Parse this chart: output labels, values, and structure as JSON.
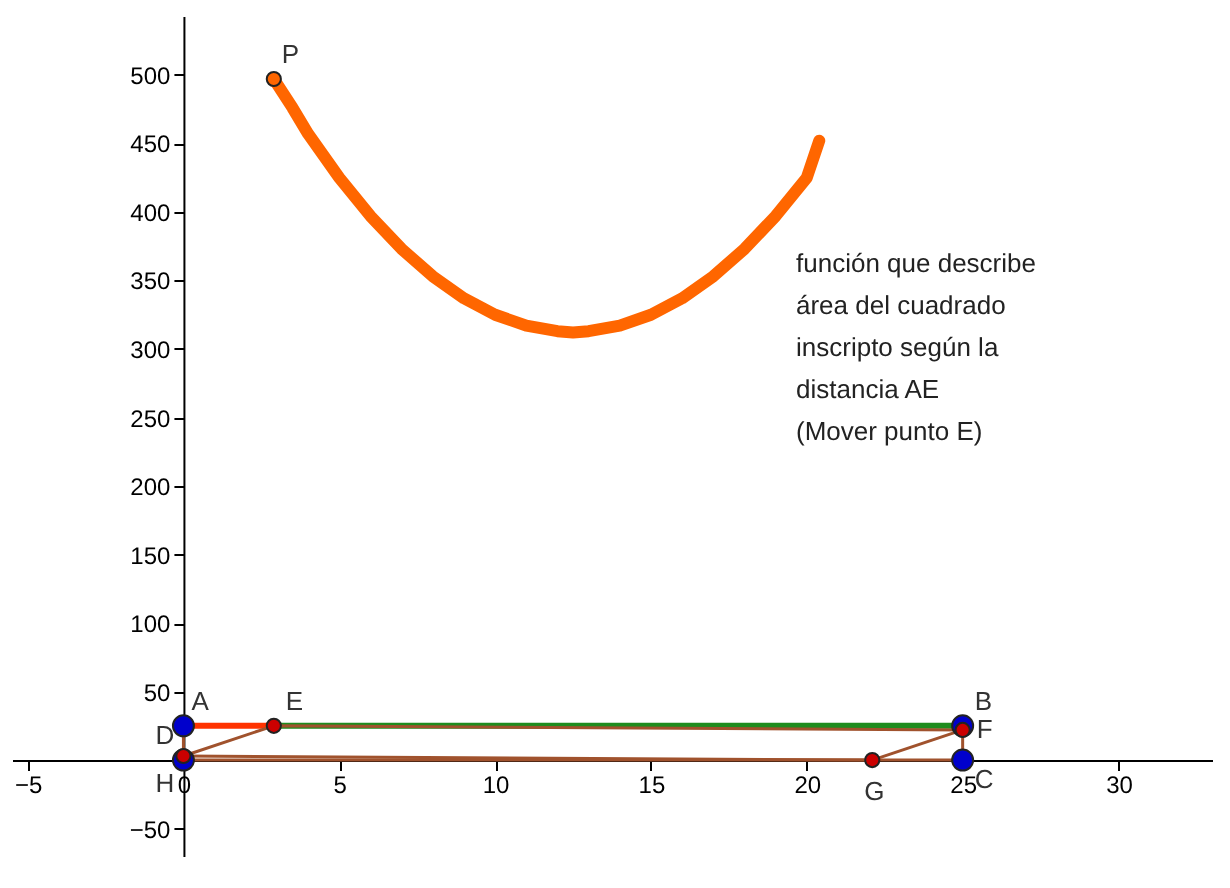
{
  "chart_data": {
    "type": "line",
    "annotations": [
      "función que describe",
      "área del cuadrado",
      "inscripto según la",
      "distancia AE",
      "(Mover punto E)",
      {
        "text": "P",
        "x": 2.9,
        "y": 497
      },
      {
        "text": "A",
        "x": 0,
        "y": 25
      },
      {
        "text": "B",
        "x": 25,
        "y": 25
      },
      {
        "text": "C",
        "x": 25,
        "y": 0
      },
      {
        "text": "D",
        "x": 0,
        "y": 0
      },
      {
        "text": "E",
        "x": 2.9,
        "y": 25
      },
      {
        "text": "F",
        "x": 25,
        "y": 22
      },
      {
        "text": "G",
        "x": 22.1,
        "y": 0
      },
      {
        "text": "H",
        "x": 0,
        "y": 3
      }
    ],
    "series": [
      {
        "color": "#ff6600",
        "x": [
          2.9,
          3.5,
          4,
          5,
          6,
          7,
          8,
          9,
          10,
          11,
          12,
          12.5,
          13,
          14,
          15,
          16,
          17,
          18,
          19,
          20,
          20.4
        ],
        "values": [
          497,
          476,
          457,
          425,
          397,
          373,
          353,
          337,
          325,
          317,
          313,
          312,
          313,
          317,
          325,
          337,
          353,
          373,
          397,
          425,
          452
        ]
      },
      {
        "color": "#ff3300",
        "x": [
          0,
          2.9
        ],
        "values": [
          25,
          25
        ]
      },
      {
        "color": "#1e8c1e",
        "x": [
          2.9,
          25
        ],
        "values": [
          25,
          25
        ]
      },
      {
        "color": "#a0522d",
        "x": [
          25,
          25,
          0,
          0
        ],
        "values": [
          25,
          0,
          0,
          25
        ]
      },
      {
        "color": "#a0522d",
        "x": [
          0,
          2.9,
          25
        ],
        "values": [
          3,
          25,
          22
        ]
      },
      {
        "color": "#a0522d",
        "x": [
          0,
          22.1,
          25
        ],
        "values": [
          3,
          0,
          22
        ]
      },
      {
        "type": "scatter",
        "marker": "circle",
        "color": "#0000cc",
        "x": [
          0,
          25,
          25,
          0
        ],
        "values": [
          25,
          25,
          0,
          0
        ]
      },
      {
        "type": "scatter",
        "marker": "circle",
        "color": "#cc0000",
        "x": [
          2.9,
          25,
          22.1,
          0
        ],
        "values": [
          25,
          22,
          0,
          3
        ]
      },
      {
        "type": "scatter",
        "marker": "circle",
        "color": "#ff6600",
        "x": [
          2.9
        ],
        "values": [
          497
        ]
      }
    ],
    "xlim": [
      -5.5,
      33
    ],
    "ylim": [
      -70,
      543
    ],
    "xticks": [
      -5,
      0,
      5,
      10,
      15,
      20,
      25,
      30
    ],
    "yticks": [
      -50,
      50,
      100,
      150,
      200,
      250,
      300,
      350,
      400,
      450,
      500
    ],
    "grid": false
  }
}
